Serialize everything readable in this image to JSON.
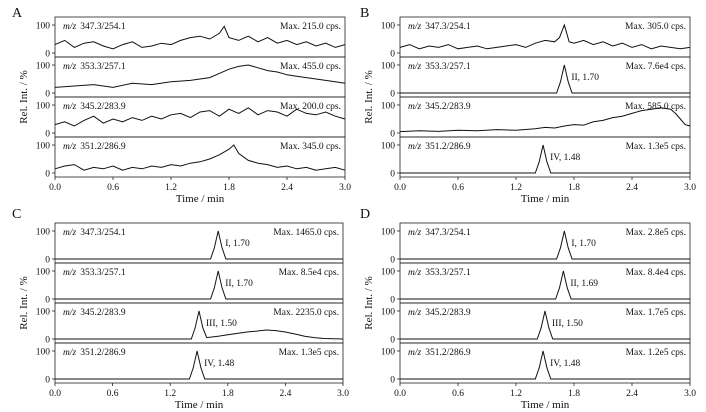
{
  "chart_data": [
    {
      "type": "line",
      "panel_label": "A",
      "xlabel": "Time / min",
      "ylabel": "Rel. Int. / %",
      "xlim": [
        0.0,
        3.0
      ],
      "x_ticks": [
        "0.0",
        "0.6",
        "1.2",
        "1.8",
        "2.4",
        "3.0"
      ],
      "traces": [
        {
          "mz_prefix": "m/z",
          "mz": "347.3/254.1",
          "max_label": "Max. 215.0 cps.",
          "y_ticks": [
            "100",
            "0"
          ],
          "peak_label": "",
          "x": [
            0.0,
            0.1,
            0.2,
            0.3,
            0.4,
            0.5,
            0.6,
            0.7,
            0.8,
            0.9,
            1.0,
            1.1,
            1.2,
            1.3,
            1.4,
            1.5,
            1.6,
            1.7,
            1.75,
            1.8,
            1.9,
            2.0,
            2.1,
            2.2,
            2.3,
            2.4,
            2.5,
            2.6,
            2.7,
            2.8,
            2.9,
            3.0
          ],
          "y": [
            30,
            45,
            20,
            35,
            40,
            25,
            15,
            30,
            40,
            20,
            25,
            35,
            30,
            45,
            55,
            60,
            50,
            70,
            95,
            55,
            45,
            60,
            40,
            55,
            35,
            45,
            30,
            40,
            25,
            35,
            20,
            30
          ]
        },
        {
          "mz_prefix": "m/z",
          "mz": "353.3/257.1",
          "max_label": "Max. 455.0 cps.",
          "y_ticks": [
            "100",
            "0"
          ],
          "peak_label": "",
          "x": [
            0.0,
            0.2,
            0.4,
            0.6,
            0.8,
            1.0,
            1.2,
            1.4,
            1.6,
            1.7,
            1.8,
            1.9,
            2.0,
            2.1,
            2.2,
            2.3,
            2.4,
            2.5,
            2.6,
            2.7,
            2.8,
            2.9,
            3.0
          ],
          "y": [
            20,
            25,
            30,
            20,
            35,
            30,
            40,
            45,
            55,
            70,
            85,
            95,
            100,
            90,
            80,
            75,
            65,
            60,
            55,
            50,
            45,
            40,
            35
          ]
        },
        {
          "mz_prefix": "m/z",
          "mz": "345.2/283.9",
          "max_label": "Max. 200.0 cps.",
          "y_ticks": [
            "100",
            "0"
          ],
          "peak_label": "",
          "x": [
            0.0,
            0.1,
            0.2,
            0.3,
            0.4,
            0.5,
            0.6,
            0.7,
            0.8,
            0.9,
            1.0,
            1.1,
            1.2,
            1.3,
            1.4,
            1.5,
            1.6,
            1.7,
            1.8,
            1.9,
            2.0,
            2.1,
            2.2,
            2.3,
            2.4,
            2.5,
            2.6,
            2.7,
            2.8,
            2.9,
            3.0
          ],
          "y": [
            30,
            40,
            25,
            45,
            60,
            35,
            50,
            40,
            55,
            45,
            60,
            50,
            65,
            70,
            55,
            75,
            80,
            60,
            85,
            70,
            90,
            65,
            80,
            75,
            60,
            85,
            70,
            65,
            75,
            60,
            50
          ]
        },
        {
          "mz_prefix": "m/z",
          "mz": "351.2/286.9",
          "max_label": "Max. 345.0 cps.",
          "y_ticks": [
            "100",
            "0"
          ],
          "peak_label": "",
          "x": [
            0.0,
            0.1,
            0.2,
            0.3,
            0.4,
            0.5,
            0.6,
            0.7,
            0.8,
            0.9,
            1.0,
            1.1,
            1.2,
            1.3,
            1.4,
            1.5,
            1.6,
            1.7,
            1.8,
            1.85,
            1.9,
            2.0,
            2.1,
            2.2,
            2.3,
            2.4,
            2.5,
            2.6,
            2.7,
            2.8,
            2.9,
            3.0
          ],
          "y": [
            15,
            25,
            30,
            10,
            20,
            15,
            25,
            10,
            20,
            15,
            25,
            20,
            30,
            25,
            35,
            40,
            50,
            65,
            85,
            100,
            70,
            45,
            35,
            30,
            20,
            25,
            15,
            20,
            10,
            15,
            20,
            10
          ]
        }
      ]
    },
    {
      "type": "line",
      "panel_label": "B",
      "xlabel": "Time / min",
      "ylabel": "Rel. Int. / %",
      "xlim": [
        0.0,
        3.0
      ],
      "x_ticks": [
        "0.0",
        "0.6",
        "1.2",
        "1.8",
        "2.4",
        "3.0"
      ],
      "traces": [
        {
          "mz_prefix": "m/z",
          "mz": "347.3/254.1",
          "max_label": "Max. 305.0 cps.",
          "y_ticks": [
            "100",
            "0"
          ],
          "peak_label": "",
          "x": [
            0.0,
            0.1,
            0.2,
            0.3,
            0.4,
            0.5,
            0.6,
            0.7,
            0.8,
            0.9,
            1.0,
            1.1,
            1.2,
            1.3,
            1.4,
            1.5,
            1.6,
            1.65,
            1.7,
            1.75,
            1.8,
            1.9,
            2.0,
            2.1,
            2.2,
            2.3,
            2.4,
            2.5,
            2.6,
            2.7,
            2.8,
            2.9,
            3.0
          ],
          "y": [
            20,
            30,
            15,
            25,
            20,
            30,
            15,
            20,
            25,
            15,
            20,
            25,
            30,
            20,
            35,
            45,
            40,
            55,
            100,
            40,
            35,
            45,
            30,
            40,
            25,
            35,
            20,
            30,
            15,
            25,
            20,
            15,
            20
          ]
        },
        {
          "mz_prefix": "m/z",
          "mz": "353.3/257.1",
          "max_label": "Max. 7.6e4 cps.",
          "y_ticks": [
            "100",
            "0"
          ],
          "peak_label": "II, 1.70",
          "x": [
            0.0,
            1.5,
            1.62,
            1.66,
            1.7,
            1.74,
            1.78,
            1.9,
            3.0
          ],
          "y": [
            0,
            0,
            0,
            40,
            100,
            40,
            0,
            0,
            0
          ]
        },
        {
          "mz_prefix": "m/z",
          "mz": "345.2/283.9",
          "max_label": "Max. 585.0 cps.",
          "y_ticks": [
            "100",
            "0"
          ],
          "peak_label": "",
          "x": [
            0.0,
            0.2,
            0.4,
            0.6,
            0.8,
            1.0,
            1.2,
            1.4,
            1.5,
            1.6,
            1.7,
            1.8,
            1.9,
            2.0,
            2.1,
            2.2,
            2.3,
            2.4,
            2.5,
            2.6,
            2.7,
            2.8,
            2.85,
            2.9,
            2.95,
            3.0
          ],
          "y": [
            5,
            8,
            6,
            10,
            8,
            12,
            10,
            15,
            20,
            18,
            25,
            30,
            28,
            40,
            45,
            55,
            60,
            70,
            80,
            85,
            90,
            85,
            70,
            50,
            30,
            25
          ]
        },
        {
          "mz_prefix": "m/z",
          "mz": "351.2/286.9",
          "max_label": "Max. 1.3e5 cps.",
          "y_ticks": [
            "100",
            "0"
          ],
          "peak_label": "IV, 1.48",
          "x": [
            0.0,
            1.3,
            1.4,
            1.44,
            1.48,
            1.52,
            1.56,
            1.7,
            3.0
          ],
          "y": [
            0,
            0,
            0,
            40,
            100,
            40,
            0,
            0,
            0
          ]
        }
      ]
    },
    {
      "type": "line",
      "panel_label": "C",
      "xlabel": "Time / min",
      "ylabel": "Rel. Int. / %",
      "xlim": [
        0.0,
        3.0
      ],
      "x_ticks": [
        "0.0",
        "0.6",
        "1.2",
        "1.8",
        "2.4",
        "3.0"
      ],
      "traces": [
        {
          "mz_prefix": "m/z",
          "mz": "347.3/254.1",
          "max_label": "Max. 1465.0 cps.",
          "y_ticks": [
            "100",
            "0"
          ],
          "peak_label": "I, 1.70",
          "x": [
            0.0,
            1.5,
            1.62,
            1.66,
            1.7,
            1.74,
            1.78,
            1.9,
            3.0
          ],
          "y": [
            0,
            0,
            0,
            40,
            100,
            40,
            0,
            0,
            0
          ]
        },
        {
          "mz_prefix": "m/z",
          "mz": "353.3/257.1",
          "max_label": "Max. 8.5e4 cps.",
          "y_ticks": [
            "100",
            "0"
          ],
          "peak_label": "II, 1.70",
          "x": [
            0.0,
            1.5,
            1.62,
            1.66,
            1.7,
            1.74,
            1.78,
            1.9,
            3.0
          ],
          "y": [
            0,
            0,
            0,
            40,
            100,
            40,
            0,
            0,
            0
          ]
        },
        {
          "mz_prefix": "m/z",
          "mz": "345.2/283.9",
          "max_label": "Max. 2235.0 cps.",
          "y_ticks": [
            "100",
            "0"
          ],
          "peak_label": "III, 1.50",
          "x": [
            0.0,
            1.3,
            1.42,
            1.46,
            1.5,
            1.54,
            1.58,
            1.7,
            1.8,
            1.9,
            2.0,
            2.1,
            2.2,
            2.3,
            2.4,
            2.5,
            2.6,
            2.7,
            2.8,
            3.0
          ],
          "y": [
            0,
            0,
            0,
            40,
            100,
            40,
            5,
            10,
            15,
            20,
            25,
            28,
            32,
            30,
            25,
            18,
            10,
            5,
            2,
            0
          ]
        },
        {
          "mz_prefix": "m/z",
          "mz": "351.2/286.9",
          "max_label": "Max. 1.3e5 cps.",
          "y_ticks": [
            "100",
            "0"
          ],
          "peak_label": "IV, 1.48",
          "x": [
            0.0,
            1.3,
            1.4,
            1.44,
            1.48,
            1.52,
            1.56,
            1.7,
            3.0
          ],
          "y": [
            0,
            0,
            0,
            40,
            100,
            40,
            0,
            0,
            0
          ]
        }
      ]
    },
    {
      "type": "line",
      "panel_label": "D",
      "xlabel": "Time / min",
      "ylabel": "Rel. Int. / %",
      "xlim": [
        0.0,
        3.0
      ],
      "x_ticks": [
        "0.0",
        "0.6",
        "1.2",
        "1.8",
        "2.4",
        "3.0"
      ],
      "traces": [
        {
          "mz_prefix": "m/z",
          "mz": "347.3/254.1",
          "max_label": "Max. 2.8e5 cps.",
          "y_ticks": [
            "100",
            "0"
          ],
          "peak_label": "I, 1.70",
          "x": [
            0.0,
            1.5,
            1.62,
            1.66,
            1.7,
            1.74,
            1.78,
            1.9,
            3.0
          ],
          "y": [
            0,
            0,
            0,
            40,
            100,
            40,
            0,
            0,
            0
          ]
        },
        {
          "mz_prefix": "m/z",
          "mz": "353.3/257.1",
          "max_label": "Max. 8.4e4 cps.",
          "y_ticks": [
            "100",
            "0"
          ],
          "peak_label": "II, 1.69",
          "x": [
            0.0,
            1.5,
            1.61,
            1.65,
            1.69,
            1.73,
            1.77,
            1.9,
            3.0
          ],
          "y": [
            0,
            0,
            0,
            40,
            100,
            40,
            0,
            0,
            0
          ]
        },
        {
          "mz_prefix": "m/z",
          "mz": "345.2/283.9",
          "max_label": "Max. 1.7e5 cps.",
          "y_ticks": [
            "100",
            "0"
          ],
          "peak_label": "III, 1.50",
          "x": [
            0.0,
            1.3,
            1.42,
            1.46,
            1.5,
            1.54,
            1.58,
            1.7,
            3.0
          ],
          "y": [
            0,
            0,
            0,
            40,
            100,
            40,
            0,
            0,
            0
          ]
        },
        {
          "mz_prefix": "m/z",
          "mz": "351.2/286.9",
          "max_label": "Max. 1.2e5 cps.",
          "y_ticks": [
            "100",
            "0"
          ],
          "peak_label": "IV, 1.48",
          "x": [
            0.0,
            1.3,
            1.4,
            1.44,
            1.48,
            1.52,
            1.56,
            1.7,
            3.0
          ],
          "y": [
            0,
            0,
            0,
            40,
            100,
            40,
            0,
            0,
            0
          ]
        }
      ]
    }
  ]
}
